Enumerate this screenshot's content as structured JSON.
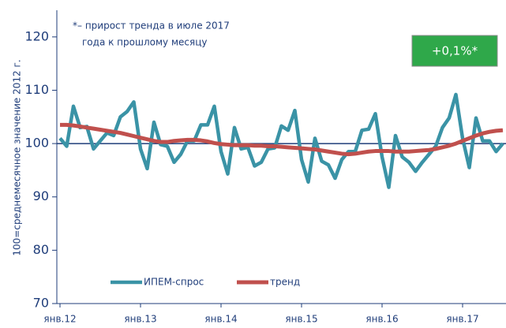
{
  "chart_data": {
    "type": "line",
    "ylabel": "100=среднемесячное значение 2012 г.",
    "annotation": [
      "*– прирост тренда в июле 2017",
      "года к прошлому месяцу"
    ],
    "badge": "+0,1%*",
    "badge_color": "#2fa84a",
    "categories": [
      "янв.12",
      null,
      null,
      null,
      null,
      null,
      null,
      null,
      null,
      null,
      null,
      null,
      "янв.13",
      null,
      null,
      null,
      null,
      null,
      null,
      null,
      null,
      null,
      null,
      null,
      "янв.14",
      null,
      null,
      null,
      null,
      null,
      null,
      null,
      null,
      null,
      null,
      null,
      "янв.15",
      null,
      null,
      null,
      null,
      null,
      null,
      null,
      null,
      null,
      null,
      null,
      "янв.16",
      null,
      null,
      null,
      null,
      null,
      null,
      null,
      null,
      null,
      null,
      null,
      "янв.17",
      null,
      null,
      null,
      null,
      null,
      null
    ],
    "series": [
      {
        "name": "ИПЕМ-спрос",
        "color": "#3a93a6",
        "width": 4.5,
        "values": [
          101,
          99.5,
          107,
          103,
          103.2,
          99,
          100.5,
          102,
          101.5,
          105,
          106,
          107.8,
          99,
          95.3,
          104,
          99.8,
          99.5,
          96.5,
          98,
          100.5,
          100.5,
          103.5,
          103.5,
          107,
          98.5,
          94.3,
          103,
          99,
          99.3,
          95.8,
          96.5,
          99,
          99.2,
          103.3,
          102.5,
          106.2,
          97,
          92.8,
          101,
          96.7,
          96,
          93.5,
          97,
          98.5,
          98.5,
          102.5,
          102.7,
          105.6,
          97.5,
          91.8,
          101.5,
          97.5,
          96.5,
          94.8,
          96.5,
          98,
          99.5,
          103,
          104.8,
          109.2,
          101,
          95.5,
          104.8,
          100.5,
          100.5,
          98.5,
          100
        ]
      },
      {
        "name": "тренд",
        "color": "#c0504d",
        "width": 5,
        "values": [
          103.5,
          103.5,
          103.4,
          103.2,
          103.0,
          102.8,
          102.6,
          102.4,
          102.2,
          102.0,
          101.7,
          101.4,
          101.1,
          100.8,
          100.5,
          100.3,
          100.3,
          100.5,
          100.6,
          100.7,
          100.7,
          100.6,
          100.4,
          100.1,
          99.9,
          99.8,
          99.7,
          99.7,
          99.7,
          99.6,
          99.6,
          99.5,
          99.5,
          99.4,
          99.3,
          99.2,
          99.1,
          99.0,
          98.9,
          98.7,
          98.5,
          98.3,
          98.1,
          98.0,
          98.1,
          98.3,
          98.5,
          98.6,
          98.6,
          98.6,
          98.5,
          98.5,
          98.5,
          98.6,
          98.7,
          98.8,
          99.0,
          99.3,
          99.6,
          100.0,
          100.5,
          101.0,
          101.5,
          101.9,
          102.2,
          102.4,
          102.5
        ]
      }
    ],
    "reference_line": 100,
    "ylim": [
      70,
      125
    ],
    "yticks": [
      70,
      80,
      90,
      100,
      110,
      120
    ],
    "legend": "lower center"
  }
}
